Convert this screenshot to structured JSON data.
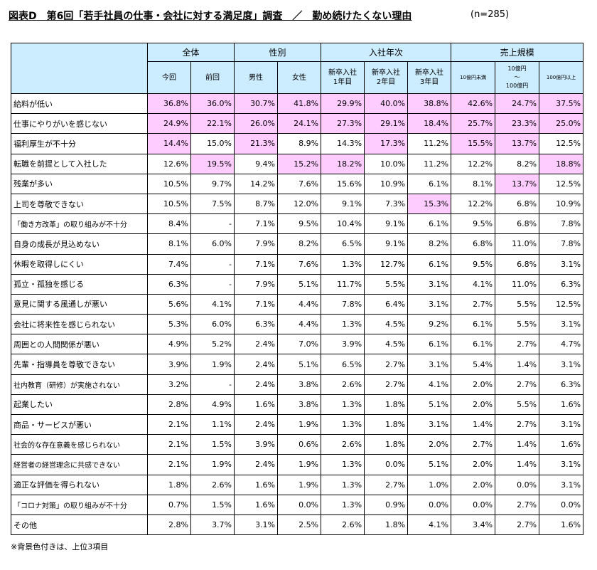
{
  "title": "図表D　第6回「若手社員の仕事・会社に対する満足度」調査　／　勤め続けたくない理由",
  "sample": "(n=285)",
  "footnote": "※背景色付きは、上位3項目",
  "colors": {
    "header_bg": "#ccecff",
    "highlight_bg": "#ffccff"
  },
  "chart_data": {
    "type": "table",
    "title": "図表D　第6回「若手社員の仕事・会社に対する満足度」調査　／　勤め続けたくない理由",
    "groups": [
      {
        "label": "全体",
        "columns": [
          "今回",
          "前回"
        ]
      },
      {
        "label": "性別",
        "columns": [
          "男性",
          "女性"
        ]
      },
      {
        "label": "入社年次",
        "columns": [
          "新卒入社\n1年目",
          "新卒入社\n2年目",
          "新卒入社\n3年目"
        ]
      },
      {
        "label": "売上規模",
        "columns": [
          "10億円未満",
          "10億円\n～\n100億円",
          "100億円以上"
        ]
      }
    ],
    "rows": [
      {
        "label": "給料が低い",
        "values": [
          "36.8%",
          "36.0%",
          "30.7%",
          "41.8%",
          "29.9%",
          "40.0%",
          "38.8%",
          "42.6%",
          "24.7%",
          "37.5%"
        ],
        "highlight": [
          1,
          1,
          1,
          1,
          1,
          1,
          1,
          1,
          1,
          1
        ]
      },
      {
        "label": "仕事にやりがいを感じない",
        "values": [
          "24.9%",
          "22.1%",
          "26.0%",
          "24.1%",
          "27.3%",
          "29.1%",
          "18.4%",
          "25.7%",
          "23.3%",
          "25.0%"
        ],
        "highlight": [
          1,
          1,
          1,
          1,
          1,
          1,
          1,
          1,
          1,
          1
        ]
      },
      {
        "label": "福利厚生が不十分",
        "values": [
          "14.4%",
          "15.0%",
          "21.3%",
          "8.9%",
          "14.3%",
          "17.3%",
          "11.2%",
          "15.5%",
          "13.7%",
          "12.5%"
        ],
        "highlight": [
          1,
          0,
          1,
          0,
          0,
          1,
          0,
          1,
          1,
          0
        ]
      },
      {
        "label": "転職を前提として入社した",
        "values": [
          "12.6%",
          "19.5%",
          "9.4%",
          "15.2%",
          "18.2%",
          "10.0%",
          "11.2%",
          "12.2%",
          "8.2%",
          "18.8%"
        ],
        "highlight": [
          0,
          1,
          0,
          1,
          1,
          0,
          0,
          0,
          0,
          1
        ]
      },
      {
        "label": "残業が多い",
        "values": [
          "10.5%",
          "9.7%",
          "14.2%",
          "7.6%",
          "15.6%",
          "10.9%",
          "6.1%",
          "8.1%",
          "13.7%",
          "12.5%"
        ],
        "highlight": [
          0,
          0,
          0,
          0,
          0,
          0,
          0,
          0,
          1,
          0
        ]
      },
      {
        "label": "上司を尊敬できない",
        "values": [
          "10.5%",
          "7.5%",
          "8.7%",
          "12.0%",
          "9.1%",
          "7.3%",
          "15.3%",
          "12.2%",
          "6.8%",
          "10.9%"
        ],
        "highlight": [
          0,
          0,
          0,
          0,
          0,
          0,
          1,
          0,
          0,
          0
        ]
      },
      {
        "label": "「働き方改革」の取り組みが不十分",
        "values": [
          "8.4%",
          "-",
          "7.1%",
          "9.5%",
          "10.4%",
          "9.1%",
          "6.1%",
          "9.5%",
          "6.8%",
          "7.8%"
        ],
        "highlight": [
          0,
          0,
          0,
          0,
          0,
          0,
          0,
          0,
          0,
          0
        ]
      },
      {
        "label": "自身の成長が見込めない",
        "values": [
          "8.1%",
          "6.0%",
          "7.9%",
          "8.2%",
          "6.5%",
          "9.1%",
          "8.2%",
          "6.8%",
          "11.0%",
          "7.8%"
        ],
        "highlight": [
          0,
          0,
          0,
          0,
          0,
          0,
          0,
          0,
          0,
          0
        ]
      },
      {
        "label": "休暇を取得しにくい",
        "values": [
          "7.4%",
          "-",
          "7.1%",
          "7.6%",
          "1.3%",
          "12.7%",
          "6.1%",
          "9.5%",
          "6.8%",
          "3.1%"
        ],
        "highlight": [
          0,
          0,
          0,
          0,
          0,
          0,
          0,
          0,
          0,
          0
        ]
      },
      {
        "label": "孤立・孤独を感じる",
        "values": [
          "6.3%",
          "-",
          "7.9%",
          "5.1%",
          "11.7%",
          "5.5%",
          "3.1%",
          "4.1%",
          "11.0%",
          "6.3%"
        ],
        "highlight": [
          0,
          0,
          0,
          0,
          0,
          0,
          0,
          0,
          0,
          0
        ]
      },
      {
        "label": "意見に関する風通しが悪い",
        "values": [
          "5.6%",
          "4.1%",
          "7.1%",
          "4.4%",
          "7.8%",
          "6.4%",
          "3.1%",
          "2.7%",
          "5.5%",
          "12.5%"
        ],
        "highlight": [
          0,
          0,
          0,
          0,
          0,
          0,
          0,
          0,
          0,
          0
        ]
      },
      {
        "label": "会社に将来性を感じられない",
        "values": [
          "5.3%",
          "6.0%",
          "6.3%",
          "4.4%",
          "1.3%",
          "4.5%",
          "9.2%",
          "6.1%",
          "5.5%",
          "3.1%"
        ],
        "highlight": [
          0,
          0,
          0,
          0,
          0,
          0,
          0,
          0,
          0,
          0
        ]
      },
      {
        "label": "周囲との人間関係が悪い",
        "values": [
          "4.9%",
          "5.2%",
          "2.4%",
          "7.0%",
          "3.9%",
          "4.5%",
          "6.1%",
          "6.1%",
          "2.7%",
          "4.7%"
        ],
        "highlight": [
          0,
          0,
          0,
          0,
          0,
          0,
          0,
          0,
          0,
          0
        ]
      },
      {
        "label": "先輩・指導員を尊敬できない",
        "values": [
          "3.9%",
          "1.9%",
          "2.4%",
          "5.1%",
          "6.5%",
          "2.7%",
          "3.1%",
          "5.4%",
          "1.4%",
          "3.1%"
        ],
        "highlight": [
          0,
          0,
          0,
          0,
          0,
          0,
          0,
          0,
          0,
          0
        ]
      },
      {
        "label": "社内教育（研修）が実施されない",
        "values": [
          "3.2%",
          "-",
          "2.4%",
          "3.8%",
          "2.6%",
          "2.7%",
          "4.1%",
          "2.0%",
          "2.7%",
          "6.3%"
        ],
        "highlight": [
          0,
          0,
          0,
          0,
          0,
          0,
          0,
          0,
          0,
          0
        ]
      },
      {
        "label": "起業したい",
        "values": [
          "2.8%",
          "4.9%",
          "1.6%",
          "3.8%",
          "1.3%",
          "1.8%",
          "5.1%",
          "2.0%",
          "5.5%",
          "1.6%"
        ],
        "highlight": [
          0,
          0,
          0,
          0,
          0,
          0,
          0,
          0,
          0,
          0
        ]
      },
      {
        "label": "商品・サービスが悪い",
        "values": [
          "2.1%",
          "1.1%",
          "2.4%",
          "1.9%",
          "1.3%",
          "1.8%",
          "3.1%",
          "1.4%",
          "2.7%",
          "3.1%"
        ],
        "highlight": [
          0,
          0,
          0,
          0,
          0,
          0,
          0,
          0,
          0,
          0
        ]
      },
      {
        "label": "社会的な存在意義を感じられない",
        "values": [
          "2.1%",
          "1.5%",
          "3.9%",
          "0.6%",
          "2.6%",
          "1.8%",
          "2.0%",
          "2.7%",
          "1.4%",
          "1.6%"
        ],
        "highlight": [
          0,
          0,
          0,
          0,
          0,
          0,
          0,
          0,
          0,
          0
        ]
      },
      {
        "label": "経営者の経営理念に共感できない",
        "values": [
          "2.1%",
          "1.9%",
          "2.4%",
          "1.9%",
          "1.3%",
          "0.0%",
          "5.1%",
          "2.0%",
          "1.4%",
          "3.1%"
        ],
        "highlight": [
          0,
          0,
          0,
          0,
          0,
          0,
          0,
          0,
          0,
          0
        ]
      },
      {
        "label": "適正な評価を得られない",
        "values": [
          "1.8%",
          "2.6%",
          "1.6%",
          "1.9%",
          "1.3%",
          "2.7%",
          "1.0%",
          "2.0%",
          "0.0%",
          "3.1%"
        ],
        "highlight": [
          0,
          0,
          0,
          0,
          0,
          0,
          0,
          0,
          0,
          0
        ]
      },
      {
        "label": "「コロナ対策」の取り組みが不十分",
        "values": [
          "0.7%",
          "1.5%",
          "1.6%",
          "0.0%",
          "1.3%",
          "0.9%",
          "0.0%",
          "0.0%",
          "2.7%",
          "0.0%"
        ],
        "highlight": [
          0,
          0,
          0,
          0,
          0,
          0,
          0,
          0,
          0,
          0
        ]
      },
      {
        "label": "その他",
        "values": [
          "2.8%",
          "3.7%",
          "3.1%",
          "2.5%",
          "2.6%",
          "1.8%",
          "4.1%",
          "3.4%",
          "2.7%",
          "1.6%"
        ],
        "highlight": [
          0,
          0,
          0,
          0,
          0,
          0,
          0,
          0,
          0,
          0
        ]
      }
    ]
  }
}
